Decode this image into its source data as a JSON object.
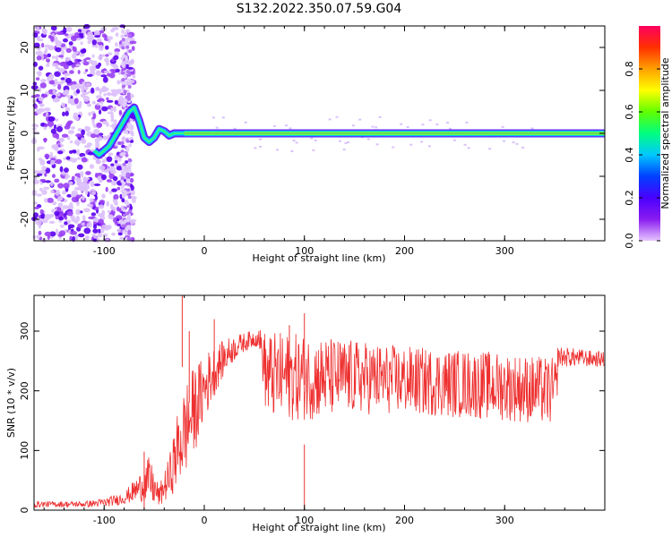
{
  "figure_title": "S132.2022.350.07.59.G04",
  "chart_data": [
    {
      "type": "heatmap",
      "title": "",
      "xlabel": "Height of straight line (km)",
      "ylabel": "Frequency (Hz)",
      "xlim": [
        -170,
        400
      ],
      "ylim": [
        -25,
        25
      ],
      "xticks": [
        -100,
        0,
        100,
        200,
        300
      ],
      "yticks": [
        -20,
        -10,
        0,
        10,
        20
      ],
      "grid": false,
      "colorbar": {
        "label": "Normalized spectral amplitude",
        "range": [
          0,
          1
        ],
        "ticks": [
          0.0,
          0.2,
          0.4,
          0.6,
          0.8
        ],
        "colormap": [
          "#e6c6ff",
          "#8a1cf0",
          "#4a00ff",
          "#0040ff",
          "#00c8ff",
          "#00ff80",
          "#60ff00",
          "#ffff00",
          "#ffa000",
          "#ff3000",
          "#ff0060"
        ]
      },
      "ridge": {
        "x": [
          -110,
          -105,
          -100,
          -95,
          -90,
          -85,
          -80,
          -75,
          -70,
          -65,
          -60,
          -55,
          -50,
          -45,
          -40,
          -35,
          -30,
          -25,
          -20,
          0,
          100,
          200,
          300,
          400
        ],
        "y": [
          -4,
          -5,
          -4,
          -3,
          -1,
          1,
          3,
          5,
          6,
          3,
          -1,
          -2,
          -1,
          1,
          0.5,
          -0.5,
          0,
          0,
          0,
          0,
          0,
          0,
          0,
          0
        ]
      }
    },
    {
      "type": "line",
      "title": "",
      "xlabel": "Height of straight line (km)",
      "ylabel": "SNR (10 * v/v)",
      "xlim": [
        -170,
        400
      ],
      "ylim": [
        0,
        360
      ],
      "xticks": [
        -100,
        0,
        100,
        200,
        300
      ],
      "yticks": [
        0,
        100,
        200,
        300
      ],
      "grid": false,
      "color": "#ee3030",
      "envelope": {
        "x": [
          -170,
          -120,
          -100,
          -80,
          -65,
          -55,
          -45,
          -35,
          -25,
          -15,
          -5,
          5,
          15,
          25,
          35,
          45,
          55,
          62,
          100,
          150,
          200,
          250,
          300,
          352,
          353,
          400
        ],
        "lo": [
          5,
          5,
          5,
          10,
          15,
          10,
          5,
          20,
          40,
          70,
          120,
          170,
          210,
          240,
          260,
          270,
          275,
          150,
          150,
          160,
          160,
          155,
          150,
          140,
          240,
          240
        ],
        "hi": [
          15,
          15,
          20,
          30,
          60,
          90,
          40,
          90,
          180,
          230,
          250,
          270,
          280,
          290,
          295,
          300,
          305,
          300,
          295,
          285,
          275,
          270,
          265,
          255,
          275,
          265
        ]
      },
      "spikes": [
        {
          "x": -60,
          "y": 98
        },
        {
          "x": -22,
          "y": 360
        },
        {
          "x": -15,
          "y": 300
        },
        {
          "x": 10,
          "y": 320
        },
        {
          "x": 100,
          "y": 110
        },
        {
          "x": 100,
          "y": 330
        },
        {
          "x": 85,
          "y": 310
        }
      ]
    }
  ]
}
